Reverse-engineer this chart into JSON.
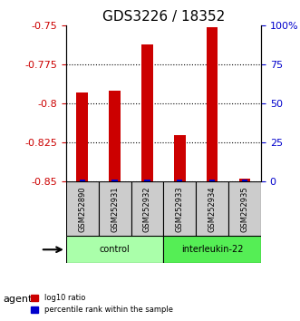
{
  "title": "GDS3226 / 18352",
  "samples": [
    "GSM252890",
    "GSM252931",
    "GSM252932",
    "GSM252933",
    "GSM252934",
    "GSM252935"
  ],
  "log10_ratio": [
    -0.793,
    -0.792,
    -0.762,
    -0.82,
    -0.751,
    -0.848
  ],
  "percentile_rank": [
    1.5,
    1.5,
    1.5,
    1.5,
    1.5,
    1.5
  ],
  "ylim_left": [
    -0.85,
    -0.75
  ],
  "yticks_left": [
    -0.85,
    -0.825,
    -0.8,
    -0.775,
    -0.75
  ],
  "ylim_right": [
    0,
    100
  ],
  "yticks_right": [
    0,
    25,
    50,
    75,
    100
  ],
  "yticklabels_right": [
    "0",
    "25",
    "50",
    "75",
    "100%"
  ],
  "bar_color_red": "#cc0000",
  "bar_color_blue": "#0000cc",
  "groups": [
    {
      "label": "control",
      "start": 0,
      "end": 3,
      "color": "#aaffaa"
    },
    {
      "label": "interleukin-22",
      "start": 3,
      "end": 6,
      "color": "#55ee55"
    }
  ],
  "agent_label": "agent",
  "background_color": "#ffffff",
  "grid_color": "#000000",
  "title_fontsize": 11,
  "tick_fontsize": 8,
  "bar_width": 0.35
}
